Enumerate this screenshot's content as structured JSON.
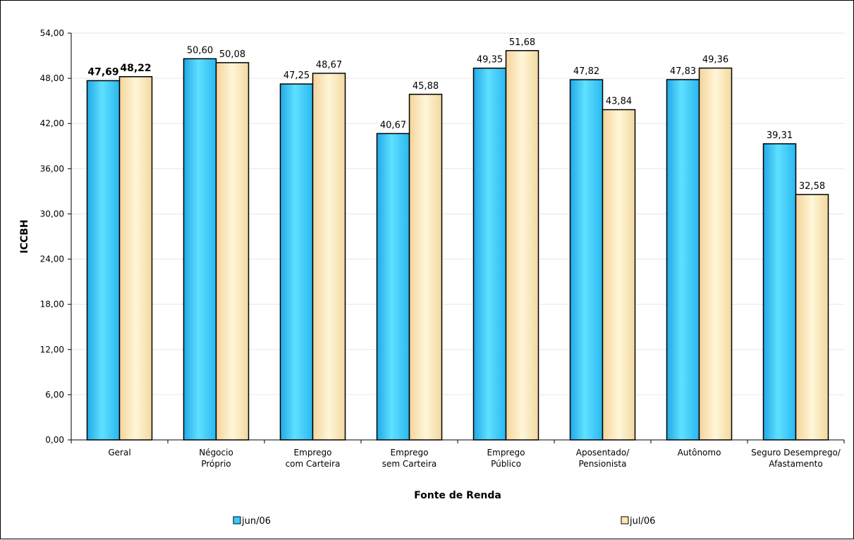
{
  "chart_data": {
    "type": "bar",
    "categories": [
      [
        "Geral"
      ],
      [
        "Négocio",
        "Próprio"
      ],
      [
        "Emprego",
        "com Carteira"
      ],
      [
        "Emprego",
        "sem Carteira"
      ],
      [
        "Emprego",
        "Público"
      ],
      [
        "Aposentado/",
        "Pensionista"
      ],
      [
        "Autônomo"
      ],
      [
        "Seguro Desemprego/",
        "Afastamento"
      ]
    ],
    "series": [
      {
        "name": "jun/06",
        "values": [
          47.69,
          50.6,
          47.25,
          40.67,
          49.35,
          47.82,
          47.83,
          39.31
        ],
        "labels": [
          "47,69",
          "50,60",
          "47,25",
          "40,67",
          "49,35",
          "47,82",
          "47,83",
          "39,31"
        ],
        "color": "#33ccff"
      },
      {
        "name": "jul/06",
        "values": [
          48.22,
          50.08,
          48.67,
          45.88,
          51.68,
          43.84,
          49.36,
          32.58
        ],
        "labels": [
          "48,22",
          "50,08",
          "48,67",
          "45,88",
          "51,68",
          "43,84",
          "49,36",
          "32,58"
        ],
        "color": "#ffe8b0"
      }
    ],
    "bold_label_categories": [
      0
    ],
    "xlabel": "Fonte de Renda",
    "ylabel": "ICCBH",
    "ylim": [
      0,
      54
    ],
    "yticks": [
      "0,00",
      "6,00",
      "12,00",
      "18,00",
      "24,00",
      "30,00",
      "36,00",
      "42,00",
      "48,00",
      "54,00"
    ],
    "grid": true,
    "legend": "bottom"
  }
}
